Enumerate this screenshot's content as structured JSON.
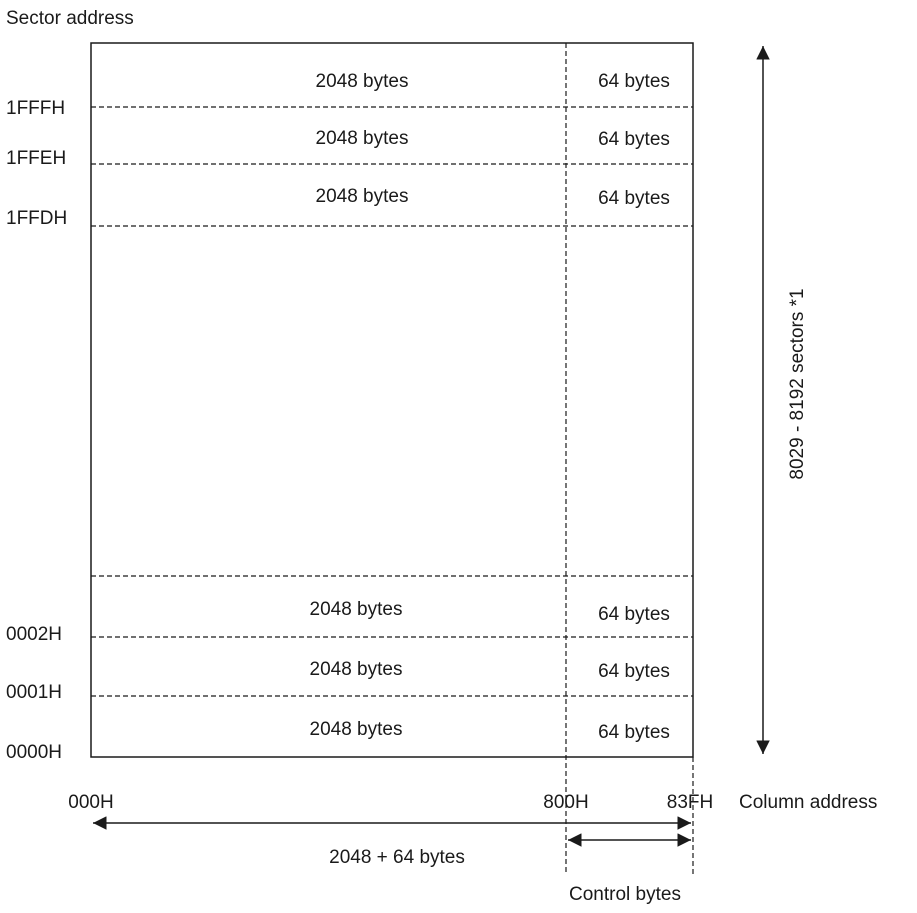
{
  "title": "Sector address",
  "rows_top": [
    {
      "data": "2048 bytes",
      "control": "64 bytes",
      "address": "1FFFH"
    },
    {
      "data": "2048 bytes",
      "control": "64 bytes",
      "address": "1FFEH"
    },
    {
      "data": "2048 bytes",
      "control": "64 bytes",
      "address": "1FFDH"
    }
  ],
  "rows_bottom": [
    {
      "data": "2048 bytes",
      "control": "64 bytes",
      "address": "0002H"
    },
    {
      "data": "2048 bytes",
      "control": "64 bytes",
      "address": "0001H"
    },
    {
      "data": "2048 bytes",
      "control": "64 bytes",
      "address": "0000H"
    }
  ],
  "column_ticks": [
    "000H",
    "800H",
    "83FH"
  ],
  "column_axis_label": "Column address",
  "total_width_label": "2048 + 64 bytes",
  "control_bytes_label": "Control bytes",
  "sector_count_label": "8029 - 8192 sectors *1"
}
